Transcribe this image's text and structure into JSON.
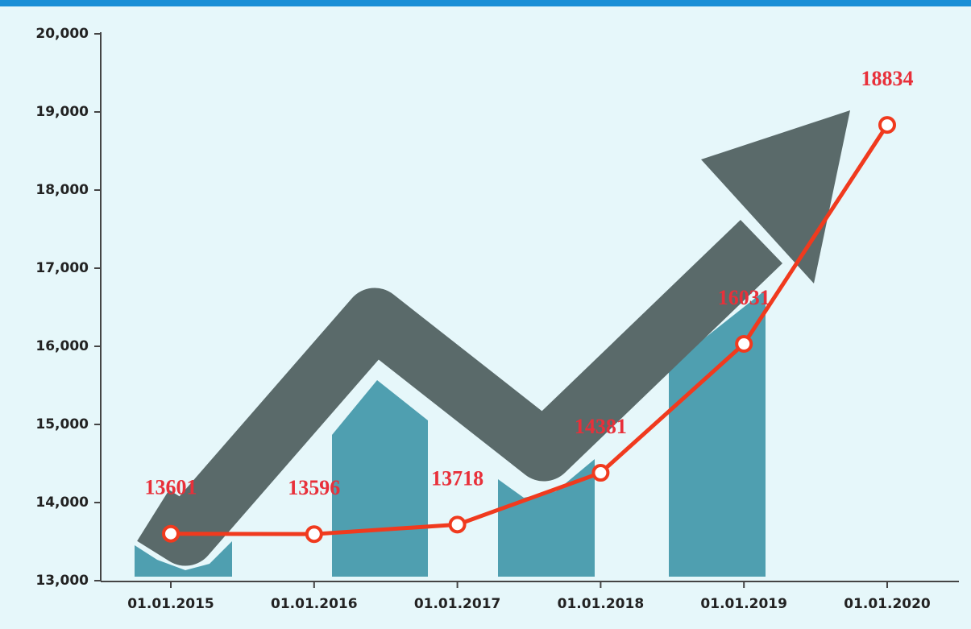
{
  "chart_data": {
    "type": "line",
    "categories": [
      "01.01.2015",
      "01.01.2016",
      "01.01.2017",
      "01.01.2018",
      "01.01.2019",
      "01.01.2020"
    ],
    "series": [
      {
        "color": "#f03a1e",
        "values": [
          13601,
          13596,
          13718,
          14381,
          16031,
          18834
        ]
      }
    ],
    "ylim": [
      13000,
      20000
    ],
    "yticks": [
      {
        "value": 13000,
        "label": "13,000"
      },
      {
        "value": 14000,
        "label": "14,000"
      },
      {
        "value": 15000,
        "label": "15,000"
      },
      {
        "value": 16000,
        "label": "16,000"
      },
      {
        "value": 17000,
        "label": "17,000"
      },
      {
        "value": 18000,
        "label": "18,000"
      },
      {
        "value": 19000,
        "label": "19,000"
      },
      {
        "value": 20000,
        "label": "20,000"
      }
    ]
  }
}
